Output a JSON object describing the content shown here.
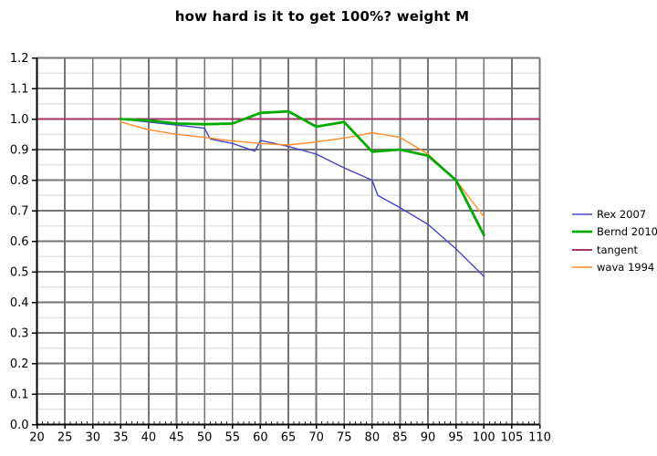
{
  "page": {
    "background": "#ffffff"
  },
  "chart_data": {
    "type": "line",
    "title": "how hard is it to get 100%? weight M",
    "xlabel": "",
    "ylabel": "",
    "x_axis": {
      "min": 20,
      "max": 110,
      "major_tick_step": 5,
      "minor_tick_step": 1,
      "tick_labels": [
        "20",
        "25",
        "30",
        "35",
        "40",
        "45",
        "50",
        "55",
        "60",
        "65",
        "70",
        "75",
        "80",
        "85",
        "90",
        "95",
        "100",
        "105",
        "110"
      ]
    },
    "y_axis": {
      "min": 0.0,
      "max": 1.2,
      "major_grid_step": 0.1,
      "minor_grid_step": 0.05,
      "tick_labels": [
        "0.0",
        "0.1",
        "0.2",
        "0.3",
        "0.4",
        "0.5",
        "0.6",
        "0.7",
        "0.8",
        "0.9",
        "1.0",
        "1.1",
        "1.2"
      ]
    },
    "grid": {
      "major_color": "#757575",
      "minor_color": "#e5e5e5",
      "axis_color": "#000000",
      "tick_color": "#222222"
    },
    "legend_position": "right",
    "series": [
      {
        "name": "Rex 2007",
        "color": "#4343cd",
        "stroke_width": 1.4,
        "points": [
          [
            35,
            1.0
          ],
          [
            40,
            0.99
          ],
          [
            45,
            0.98
          ],
          [
            50,
            0.97
          ],
          [
            51,
            0.935
          ],
          [
            55,
            0.92
          ],
          [
            59,
            0.895
          ],
          [
            60,
            0.93
          ],
          [
            65,
            0.91
          ],
          [
            70,
            0.885
          ],
          [
            75,
            0.84
          ],
          [
            80,
            0.8
          ],
          [
            81,
            0.75
          ],
          [
            85,
            0.71
          ],
          [
            90,
            0.655
          ],
          [
            95,
            0.575
          ],
          [
            100,
            0.485
          ]
        ]
      },
      {
        "name": "Bernd 2010",
        "color": "#00ab00",
        "stroke_width": 2.8,
        "points": [
          [
            35,
            1.0
          ],
          [
            40,
            0.995
          ],
          [
            45,
            0.985
          ],
          [
            50,
            0.983
          ],
          [
            55,
            0.985
          ],
          [
            60,
            1.02
          ],
          [
            65,
            1.025
          ],
          [
            70,
            0.975
          ],
          [
            75,
            0.99
          ],
          [
            80,
            0.893
          ],
          [
            85,
            0.9
          ],
          [
            90,
            0.88
          ],
          [
            95,
            0.8
          ],
          [
            100,
            0.62
          ]
        ]
      },
      {
        "name": "tangent",
        "color": "#a23366",
        "stroke_width": 2.0,
        "points": [
          [
            20,
            1.0
          ],
          [
            110,
            1.0
          ]
        ]
      },
      {
        "name": "wava 1994",
        "color": "#ff8c26",
        "stroke_width": 1.4,
        "points": [
          [
            35,
            0.99
          ],
          [
            40,
            0.965
          ],
          [
            45,
            0.95
          ],
          [
            50,
            0.94
          ],
          [
            55,
            0.928
          ],
          [
            60,
            0.92
          ],
          [
            65,
            0.915
          ],
          [
            70,
            0.925
          ],
          [
            75,
            0.938
          ],
          [
            80,
            0.955
          ],
          [
            85,
            0.94
          ],
          [
            90,
            0.885
          ],
          [
            95,
            0.8
          ],
          [
            100,
            0.68
          ]
        ]
      }
    ]
  }
}
